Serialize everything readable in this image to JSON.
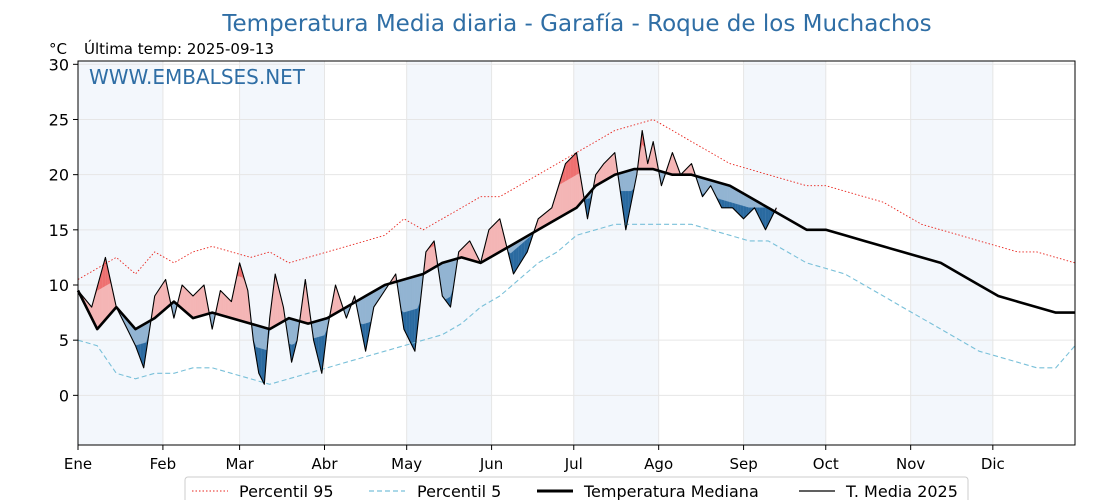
{
  "header": {
    "title": "Temperatura Media diaria - Garafía - Roque de los Muchachos",
    "unit": "°C",
    "last_temp": "Última temp: 2025-09-13",
    "watermark": "WWW.EMBALSES.NET"
  },
  "legend": {
    "p95": "Percentil 95",
    "p5": "Percentil 5",
    "median": "Temperatura Mediana",
    "current": "T. Media 2025"
  },
  "colors": {
    "p95": "#e8231c",
    "p5": "#79c0d9",
    "median": "#000000",
    "current": "#000000",
    "above_light": "#f4b5b5",
    "above_strong": "#ee7070",
    "below_light": "#92b4d2",
    "below_strong": "#2a6aa0",
    "band": "#f3f7fc",
    "title": "#2f6ea5"
  },
  "chart_data": {
    "type": "line",
    "title": "Temperatura Media diaria - Garafía - Roque de los Muchachos",
    "ylabel": "°C",
    "ylim": [
      -4.5,
      30.3
    ],
    "yticks": [
      0,
      5,
      10,
      15,
      20,
      25,
      30
    ],
    "months": [
      "Ene",
      "Feb",
      "Mar",
      "Abr",
      "May",
      "Jun",
      "Jul",
      "Ago",
      "Sep",
      "Oct",
      "Nov",
      "Dic"
    ],
    "grid": true,
    "legend_position": "bottom",
    "last_day": 256,
    "series": [
      {
        "name": "Percentil 95",
        "style": "dotted-red",
        "points": [
          [
            1,
            10.5
          ],
          [
            8,
            11.5
          ],
          [
            15,
            12.5
          ],
          [
            22,
            11
          ],
          [
            29,
            13
          ],
          [
            36,
            12
          ],
          [
            43,
            13
          ],
          [
            50,
            13.5
          ],
          [
            57,
            13
          ],
          [
            64,
            12.5
          ],
          [
            71,
            13
          ],
          [
            78,
            12
          ],
          [
            85,
            12.5
          ],
          [
            92,
            13
          ],
          [
            99,
            13.5
          ],
          [
            106,
            14
          ],
          [
            113,
            14.5
          ],
          [
            120,
            16
          ],
          [
            127,
            15
          ],
          [
            134,
            16
          ],
          [
            141,
            17
          ],
          [
            148,
            18
          ],
          [
            155,
            18
          ],
          [
            162,
            19
          ],
          [
            169,
            20
          ],
          [
            176,
            21
          ],
          [
            183,
            22
          ],
          [
            190,
            23
          ],
          [
            197,
            24
          ],
          [
            204,
            24.5
          ],
          [
            211,
            25
          ],
          [
            218,
            24
          ],
          [
            225,
            23
          ],
          [
            232,
            22
          ],
          [
            239,
            21
          ],
          [
            246,
            20.5
          ],
          [
            253,
            20
          ],
          [
            260,
            19.5
          ],
          [
            267,
            19
          ],
          [
            274,
            19
          ],
          [
            281,
            18.5
          ],
          [
            288,
            18
          ],
          [
            295,
            17.5
          ],
          [
            302,
            16.5
          ],
          [
            309,
            15.5
          ],
          [
            316,
            15
          ],
          [
            323,
            14.5
          ],
          [
            330,
            14
          ],
          [
            337,
            13.5
          ],
          [
            344,
            13
          ],
          [
            351,
            13
          ],
          [
            358,
            12.5
          ],
          [
            365,
            12
          ]
        ]
      },
      {
        "name": "Percentil 5",
        "style": "dashed-lightblue",
        "points": [
          [
            1,
            5
          ],
          [
            8,
            4.5
          ],
          [
            15,
            2
          ],
          [
            22,
            1.5
          ],
          [
            29,
            2
          ],
          [
            36,
            2
          ],
          [
            43,
            2.5
          ],
          [
            50,
            2.5
          ],
          [
            57,
            2
          ],
          [
            64,
            1.5
          ],
          [
            71,
            1
          ],
          [
            78,
            1.5
          ],
          [
            85,
            2
          ],
          [
            92,
            2.5
          ],
          [
            99,
            3
          ],
          [
            106,
            3.5
          ],
          [
            113,
            4
          ],
          [
            120,
            4.5
          ],
          [
            127,
            5
          ],
          [
            134,
            5.5
          ],
          [
            141,
            6.5
          ],
          [
            148,
            8
          ],
          [
            155,
            9
          ],
          [
            162,
            10.5
          ],
          [
            169,
            12
          ],
          [
            176,
            13
          ],
          [
            183,
            14.5
          ],
          [
            190,
            15
          ],
          [
            197,
            15.5
          ],
          [
            204,
            15.5
          ],
          [
            211,
            15.5
          ],
          [
            218,
            15.5
          ],
          [
            225,
            15.5
          ],
          [
            232,
            15
          ],
          [
            239,
            14.5
          ],
          [
            246,
            14
          ],
          [
            253,
            14
          ],
          [
            260,
            13
          ],
          [
            267,
            12
          ],
          [
            274,
            11.5
          ],
          [
            281,
            11
          ],
          [
            288,
            10
          ],
          [
            295,
            9
          ],
          [
            302,
            8
          ],
          [
            309,
            7
          ],
          [
            316,
            6
          ],
          [
            323,
            5
          ],
          [
            330,
            4
          ],
          [
            337,
            3.5
          ],
          [
            344,
            3
          ],
          [
            351,
            2.5
          ],
          [
            358,
            2.5
          ],
          [
            365,
            4.5
          ]
        ]
      },
      {
        "name": "Temperatura Mediana",
        "style": "thick-black",
        "points": [
          [
            1,
            9.5
          ],
          [
            8,
            6
          ],
          [
            15,
            8
          ],
          [
            22,
            6
          ],
          [
            29,
            7
          ],
          [
            36,
            8.5
          ],
          [
            43,
            7
          ],
          [
            50,
            7.5
          ],
          [
            57,
            7
          ],
          [
            64,
            6.5
          ],
          [
            71,
            6
          ],
          [
            78,
            7
          ],
          [
            85,
            6.5
          ],
          [
            92,
            7
          ],
          [
            99,
            8
          ],
          [
            106,
            9
          ],
          [
            113,
            10
          ],
          [
            120,
            10.5
          ],
          [
            127,
            11
          ],
          [
            134,
            12
          ],
          [
            141,
            12.5
          ],
          [
            148,
            12
          ],
          [
            155,
            13
          ],
          [
            162,
            14
          ],
          [
            169,
            15
          ],
          [
            176,
            16
          ],
          [
            183,
            17
          ],
          [
            190,
            19
          ],
          [
            197,
            20
          ],
          [
            204,
            20.5
          ],
          [
            211,
            20.5
          ],
          [
            218,
            20
          ],
          [
            225,
            20
          ],
          [
            232,
            19.5
          ],
          [
            239,
            19
          ],
          [
            246,
            18
          ],
          [
            253,
            17
          ],
          [
            260,
            16
          ],
          [
            267,
            15
          ],
          [
            274,
            15
          ],
          [
            281,
            14.5
          ],
          [
            288,
            14
          ],
          [
            295,
            13.5
          ],
          [
            302,
            13
          ],
          [
            309,
            12.5
          ],
          [
            316,
            12
          ],
          [
            323,
            11
          ],
          [
            330,
            10
          ],
          [
            337,
            9
          ],
          [
            344,
            8.5
          ],
          [
            351,
            8
          ],
          [
            358,
            7.5
          ],
          [
            365,
            7.5
          ]
        ]
      },
      {
        "name": "T. Media 2025",
        "style": "thin-black",
        "points": [
          [
            1,
            9.5
          ],
          [
            6,
            8
          ],
          [
            11,
            12.5
          ],
          [
            15,
            8
          ],
          [
            19,
            6
          ],
          [
            22,
            4.5
          ],
          [
            25,
            2.5
          ],
          [
            29,
            9
          ],
          [
            33,
            10.5
          ],
          [
            36,
            7
          ],
          [
            39,
            10
          ],
          [
            43,
            9
          ],
          [
            47,
            10
          ],
          [
            50,
            6
          ],
          [
            53,
            9.5
          ],
          [
            57,
            8.5
          ],
          [
            60,
            12
          ],
          [
            63,
            9.5
          ],
          [
            65,
            5
          ],
          [
            67,
            2
          ],
          [
            69,
            1
          ],
          [
            71,
            7
          ],
          [
            73,
            11
          ],
          [
            76,
            8
          ],
          [
            79,
            3
          ],
          [
            81,
            5
          ],
          [
            84,
            10.5
          ],
          [
            87,
            5
          ],
          [
            90,
            2
          ],
          [
            92,
            6
          ],
          [
            95,
            10
          ],
          [
            99,
            7
          ],
          [
            102,
            9
          ],
          [
            106,
            4
          ],
          [
            109,
            8
          ],
          [
            113,
            9.5
          ],
          [
            117,
            11
          ],
          [
            120,
            6
          ],
          [
            124,
            4
          ],
          [
            128,
            13
          ],
          [
            131,
            14
          ],
          [
            134,
            9
          ],
          [
            137,
            8
          ],
          [
            140,
            13
          ],
          [
            144,
            14
          ],
          [
            148,
            12
          ],
          [
            151,
            15
          ],
          [
            155,
            16
          ],
          [
            160,
            11
          ],
          [
            165,
            13
          ],
          [
            169,
            16
          ],
          [
            174,
            17
          ],
          [
            179,
            21
          ],
          [
            183,
            22
          ],
          [
            187,
            16
          ],
          [
            190,
            20
          ],
          [
            193,
            21
          ],
          [
            197,
            22
          ],
          [
            201,
            15
          ],
          [
            205,
            20
          ],
          [
            207,
            24
          ],
          [
            209,
            21
          ],
          [
            211,
            23
          ],
          [
            214,
            19
          ],
          [
            218,
            22
          ],
          [
            221,
            20
          ],
          [
            225,
            21
          ],
          [
            229,
            18
          ],
          [
            232,
            19
          ],
          [
            236,
            17
          ],
          [
            240,
            17
          ],
          [
            244,
            16
          ],
          [
            248,
            17
          ],
          [
            252,
            15
          ],
          [
            256,
            17
          ]
        ]
      }
    ]
  }
}
